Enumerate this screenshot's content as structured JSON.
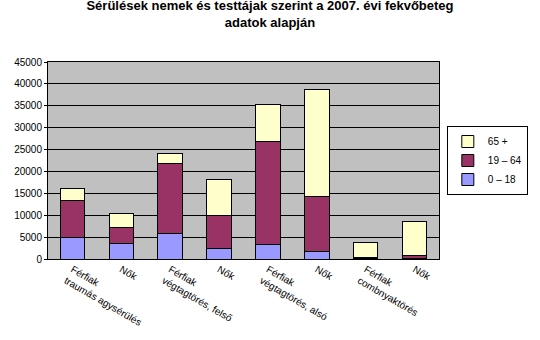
{
  "chart_data": {
    "type": "bar",
    "stacked": true,
    "title": "Sérülések nemek és testtájak szerint a 2007. évi fekvőbeteg\nadatok alapján",
    "categories": [
      "Férfiak\ntraumás agysérülés",
      "Nők",
      "Férfiak\nvégtagtörés, felső",
      "Nők",
      "Férfiak\nvégtagtörés, alsó",
      "Nők",
      "Férfiak\ncombnyaktörés",
      "Nők"
    ],
    "series": [
      {
        "name": "0 – 18",
        "color": "#9999ff",
        "values": [
          4800,
          3500,
          5800,
          2300,
          3200,
          1700,
          50,
          100
        ]
      },
      {
        "name": "19 – 64",
        "color": "#993366",
        "values": [
          8500,
          3700,
          16100,
          7600,
          23600,
          12500,
          200,
          800
        ]
      },
      {
        "name": "65 +",
        "color": "#ffffcc",
        "values": [
          2900,
          3200,
          2300,
          8300,
          8400,
          24600,
          3450,
          7700
        ]
      }
    ],
    "ylim": [
      0,
      45000
    ],
    "yticks": [
      0,
      5000,
      10000,
      15000,
      20000,
      25000,
      30000,
      35000,
      40000,
      45000
    ],
    "grid": true,
    "legend": "right"
  }
}
